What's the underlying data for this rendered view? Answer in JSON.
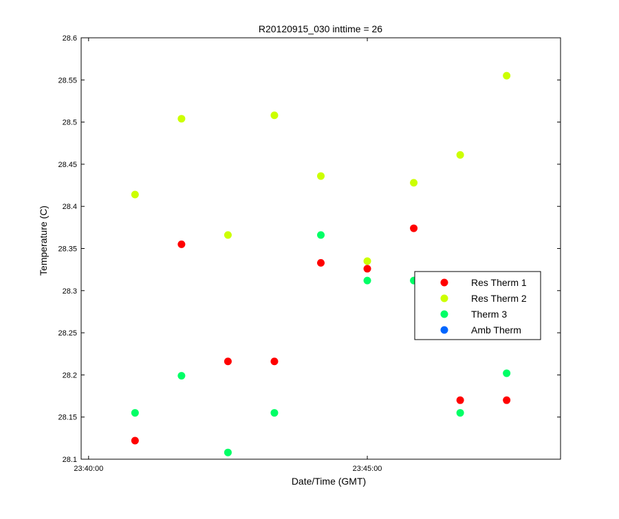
{
  "chart_data": {
    "type": "scatter",
    "title": "R20120915_030 inttime = 26",
    "xlabel": "Date/Time (GMT)",
    "ylabel": "Temperature (C)",
    "x_unit": "time (HH:MM:SS)",
    "xlim": [
      "23:39:52",
      "23:48:28"
    ],
    "ylim": [
      28.1,
      28.6
    ],
    "xticks": [
      {
        "value": "23:40:00",
        "label": "23:40:00"
      },
      {
        "value": "23:45:00",
        "label": "23:45:00"
      }
    ],
    "yticks": [
      {
        "value": 28.1,
        "label": "28.1"
      },
      {
        "value": 28.15,
        "label": "28.15"
      },
      {
        "value": 28.2,
        "label": "28.2"
      },
      {
        "value": 28.25,
        "label": "28.25"
      },
      {
        "value": 28.3,
        "label": "28.3"
      },
      {
        "value": 28.35,
        "label": "28.35"
      },
      {
        "value": 28.4,
        "label": "28.4"
      },
      {
        "value": 28.45,
        "label": "28.45"
      },
      {
        "value": 28.5,
        "label": "28.5"
      },
      {
        "value": 28.55,
        "label": "28.55"
      },
      {
        "value": 28.6,
        "label": "28.6"
      }
    ],
    "grid": false,
    "legend_position": "right-middle",
    "series": [
      {
        "name": "Res Therm 1",
        "color": "#ff0000",
        "points": [
          {
            "x": "23:40:50",
            "y": 28.122
          },
          {
            "x": "23:41:40",
            "y": 28.355
          },
          {
            "x": "23:42:30",
            "y": 28.216
          },
          {
            "x": "23:43:20",
            "y": 28.216
          },
          {
            "x": "23:44:10",
            "y": 28.333
          },
          {
            "x": "23:45:00",
            "y": 28.326
          },
          {
            "x": "23:45:50",
            "y": 28.374
          },
          {
            "x": "23:46:40",
            "y": 28.17
          },
          {
            "x": "23:47:30",
            "y": 28.17
          }
        ]
      },
      {
        "name": "Res Therm 2",
        "color": "#ccff00",
        "points": [
          {
            "x": "23:40:50",
            "y": 28.414
          },
          {
            "x": "23:41:40",
            "y": 28.504
          },
          {
            "x": "23:42:30",
            "y": 28.366
          },
          {
            "x": "23:43:20",
            "y": 28.508
          },
          {
            "x": "23:44:10",
            "y": 28.436
          },
          {
            "x": "23:45:00",
            "y": 28.335
          },
          {
            "x": "23:45:50",
            "y": 28.428
          },
          {
            "x": "23:46:40",
            "y": 28.461
          },
          {
            "x": "23:47:30",
            "y": 28.555
          }
        ]
      },
      {
        "name": "Therm 3",
        "color": "#00ff66",
        "points": [
          {
            "x": "23:40:50",
            "y": 28.155
          },
          {
            "x": "23:41:40",
            "y": 28.199
          },
          {
            "x": "23:42:30",
            "y": 28.108
          },
          {
            "x": "23:43:20",
            "y": 28.155
          },
          {
            "x": "23:44:10",
            "y": 28.366
          },
          {
            "x": "23:45:00",
            "y": 28.312
          },
          {
            "x": "23:45:50",
            "y": 28.312
          },
          {
            "x": "23:46:40",
            "y": 28.155
          },
          {
            "x": "23:47:30",
            "y": 28.202
          }
        ]
      },
      {
        "name": "Amb Therm",
        "color": "#0066ff",
        "points": []
      }
    ]
  }
}
